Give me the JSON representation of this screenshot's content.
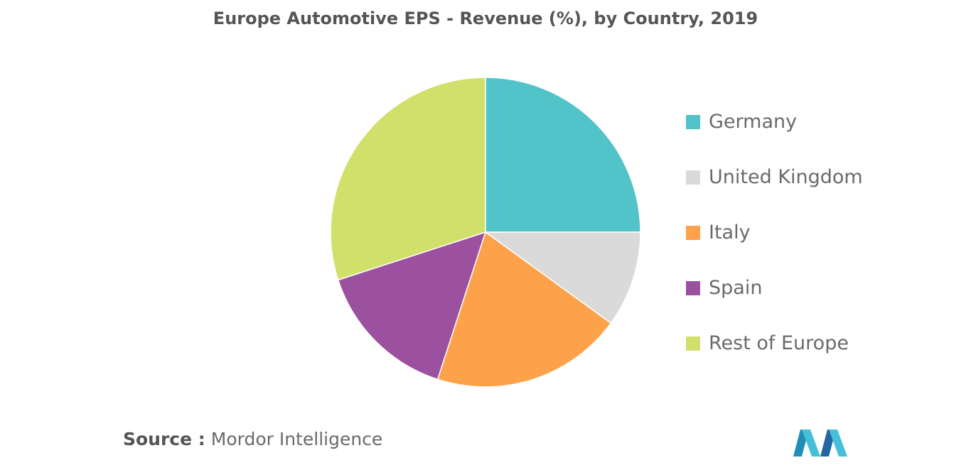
{
  "chart_data": {
    "type": "pie",
    "title": "Europe Automotive EPS - Revenue (%), by Country, 2019",
    "categories": [
      "Germany",
      "United Kingdom",
      "Italy",
      "Spain",
      "Rest of Europe"
    ],
    "values": [
      25,
      10,
      20,
      15,
      30
    ],
    "colors": [
      "#52c3c9",
      "#dadada",
      "#fda24a",
      "#9b519f",
      "#d1e06a"
    ],
    "legend_position": "right"
  },
  "source": {
    "label": "Source :",
    "text": "Mordor Intelligence"
  },
  "logo": {
    "icon": "mordor-intelligence-logo",
    "colors": [
      "#1f8fb5",
      "#46c0d9",
      "#2466a4"
    ]
  }
}
